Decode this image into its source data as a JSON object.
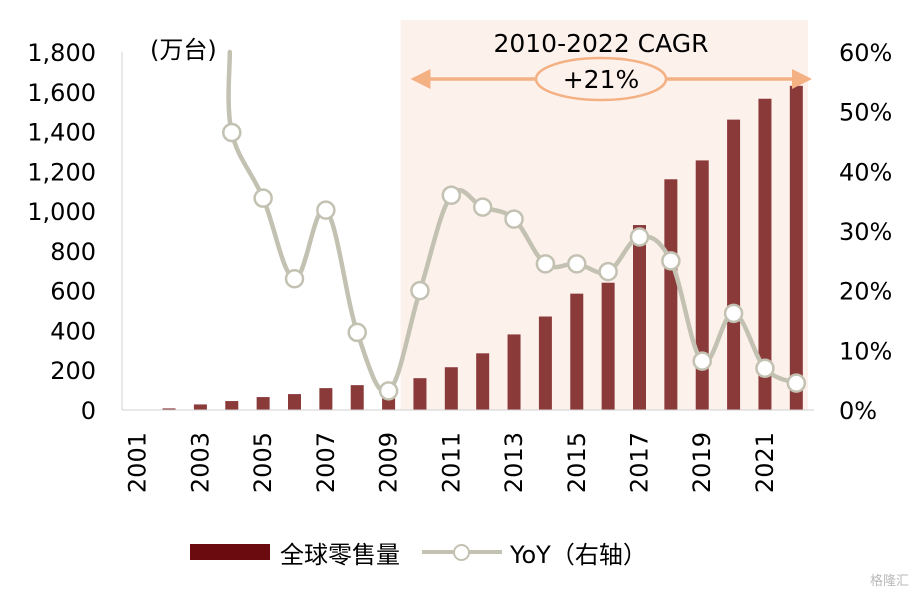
{
  "chart_data": {
    "type": "bar+line",
    "unit_label": "(万台)",
    "categories": [
      "2001",
      "2002",
      "2003",
      "2004",
      "2005",
      "2006",
      "2007",
      "2008",
      "2009",
      "2010",
      "2011",
      "2012",
      "2013",
      "2014",
      "2015",
      "2016",
      "2017",
      "2018",
      "2019",
      "2020",
      "2021",
      "2022"
    ],
    "x_tick_labels": [
      "2001",
      "2003",
      "2005",
      "2007",
      "2009",
      "2011",
      "2013",
      "2015",
      "2017",
      "2019",
      "2021"
    ],
    "series": [
      {
        "name": "全球零售量",
        "type": "bar",
        "axis": "left",
        "color": "#8b3a3a",
        "values": [
          2,
          8,
          28,
          45,
          65,
          80,
          110,
          125,
          85,
          160,
          215,
          285,
          380,
          470,
          585,
          640,
          930,
          1160,
          1255,
          1460,
          1565,
          1630
        ]
      },
      {
        "name": "YoY（右轴）",
        "type": "line",
        "axis": "right",
        "color": "#c3c2b2",
        "values": [
          null,
          null,
          null,
          46.5,
          35.5,
          22,
          33.5,
          13,
          3.2,
          20,
          36,
          34,
          32,
          24.5,
          24.5,
          23.2,
          29,
          25,
          8.2,
          16.2,
          7,
          4.5
        ],
        "entry_value": 60
      }
    ],
    "y_left": {
      "min": 0,
      "max": 1800,
      "step": 200,
      "tick_labels": [
        "0",
        "200",
        "400",
        "600",
        "800",
        "1,000",
        "1,200",
        "1,400",
        "1,600",
        "1,800"
      ]
    },
    "y_right": {
      "min": 0,
      "max": 60,
      "step": 10,
      "tick_labels": [
        "0%",
        "10%",
        "20%",
        "30%",
        "40%",
        "50%",
        "60%"
      ]
    },
    "annotation": {
      "title": "2010-2022 CAGR",
      "value": "+21%",
      "from": "2010",
      "to": "2022",
      "shade_color": "#fdf1ec",
      "arrow_color": "#f4b184"
    },
    "legend_position": "bottom",
    "grid": false
  },
  "watermark": "格隆汇"
}
